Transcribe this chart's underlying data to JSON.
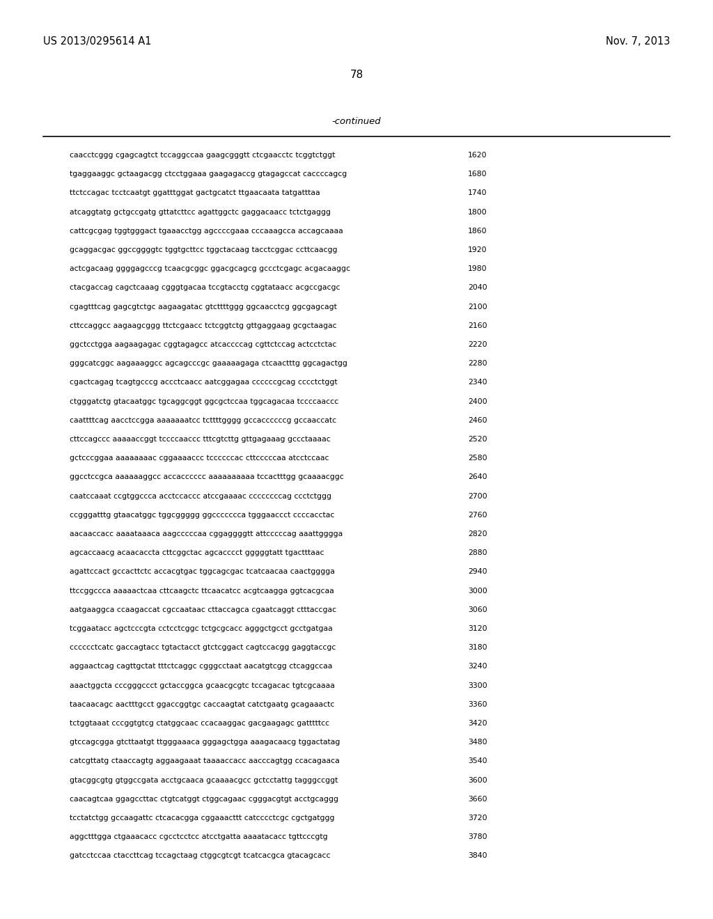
{
  "header_left": "US 2013/0295614 A1",
  "header_right": "Nov. 7, 2013",
  "page_number": "78",
  "continued_label": "-continued",
  "background_color": "#ffffff",
  "text_color": "#000000",
  "font_size_header": 10.5,
  "font_size_page": 11,
  "font_size_continued": 9.5,
  "font_size_sequence": 7.8,
  "sequence_lines": [
    [
      "caacctcggg cgagcagtct tccaggccaa gaagcgggtt ctcgaacctc tcggtctggt",
      "1620"
    ],
    [
      "tgaggaaggc gctaagacgg ctcctggaaa gaagagaccg gtagagccat caccccagcg",
      "1680"
    ],
    [
      "ttctccagac tcctcaatgt ggatttggat gactgcatct ttgaacaata tatgatttaa",
      "1740"
    ],
    [
      "atcaggtatg gctgccgatg gttatcttcc agattggctc gaggacaacc tctctgaggg",
      "1800"
    ],
    [
      "cattcgcgag tggtgggact tgaaacctgg agccccgaaa cccaaagcca accagcaaaa",
      "1860"
    ],
    [
      "gcaggacgac ggccggggtc tggtgcttcc tggctacaag tacctcggac ccttcaacgg",
      "1920"
    ],
    [
      "actcgacaag ggggagcccg tcaacgcggc ggacgcagcg gccctcgagc acgacaaggc",
      "1980"
    ],
    [
      "ctacgaccag cagctcaaag cgggtgacaa tccgtacctg cggtataacc acgccgacgc",
      "2040"
    ],
    [
      "cgagtttcag gagcgtctgc aagaagatac gtcttttggg ggcaacctcg ggcgagcagt",
      "2100"
    ],
    [
      "cttccaggcc aagaagcggg ttctcgaacc tctcggtctg gttgaggaag gcgctaagac",
      "2160"
    ],
    [
      "ggctcctgga aagaagagac cggtagagcc atcaccccag cgttctccag actcctctac",
      "2220"
    ],
    [
      "gggcatcggc aagaaaggcc agcagcccgc gaaaaagaga ctcaactttg ggcagactgg",
      "2280"
    ],
    [
      "cgactcagag tcagtgcccg accctcaacc aatcggagaa ccccccgcag cccctctggt",
      "2340"
    ],
    [
      "ctgggatctg gtacaatggc tgcaggcggt ggcgctccaa tggcagacaa tccccaaccc",
      "2400"
    ],
    [
      "caattttcag aacctccgga aaaaaaatcc tcttttgggg gccaccccccg gccaaccatc",
      "2460"
    ],
    [
      "cttccagccc aaaaaccggt tccccaaccc tttcgtcttg gttgagaaag gccctaaaac",
      "2520"
    ],
    [
      "gctcccggaa aaaaaaaac cggaaaaccc tccccccac cttcccccaa atcctccaac",
      "2580"
    ],
    [
      "ggcctccgca aaaaaaggcc accacccccc aaaaaaaaaa tccactttgg gcaaaacggc",
      "2640"
    ],
    [
      "caatccaaat ccgtggccca acctccaccc atccgaaaac ccccccccag ccctctggg",
      "2700"
    ],
    [
      "ccgggatttg gtaacatggc tggcggggg ggccccccca tgggaaccct ccccacctac",
      "2760"
    ],
    [
      "aacaaccacc aaaataaaca aagcccccaa cggaggggtt attcccccag aaattgggga",
      "2820"
    ],
    [
      "agcaccaacg acaacaccta cttcggctac agcacccct gggggtatt tgactttaac",
      "2880"
    ],
    [
      "agattccact gccacttctc accacgtgac tggcagcgac tcatcaacaa caactgggga",
      "2940"
    ],
    [
      "ttccggccca aaaaactcaa cttcaagctc ttcaacatcc acgtcaagga ggtcacgcaa",
      "3000"
    ],
    [
      "aatgaaggca ccaagaccat cgccaataac cttaccagca cgaatcaggt ctttaccgac",
      "3060"
    ],
    [
      "tcggaatacc agctcccgta cctcctcggc tctgcgcacc agggctgcct gcctgatgaa",
      "3120"
    ],
    [
      "cccccctcatc gaccagtacc tgtactacct gtctcggact cagtccacgg gaggtaccgc",
      "3180"
    ],
    [
      "aggaactcag cagttgctat tttctcaggc cgggcctaat aacatgtcgg ctcaggccaa",
      "3240"
    ],
    [
      "aaactggcta cccgggccct gctaccggca gcaacgcgtc tccagacac tgtcgcaaaa",
      "3300"
    ],
    [
      "taacaacagc aactttgcct ggaccggtgc caccaagtat catctgaatg gcagaaactc",
      "3360"
    ],
    [
      "tctggtaaat cccggtgtcg ctatggcaac ccacaaggac gacgaagagc gatttttcc",
      "3420"
    ],
    [
      "gtccagcgga gtcttaatgt ttgggaaaca gggagctgga aaagacaacg tggactatag",
      "3480"
    ],
    [
      "catcgttatg ctaaccagtg aggaagaaat taaaaccacc aacccagtgg ccacagaaca",
      "3540"
    ],
    [
      "gtacggcgtg gtggccgata acctgcaaca gcaaaacgcc gctcctattg tagggccggt",
      "3600"
    ],
    [
      "caacagtcaa ggagccttac ctgtcatggt ctggcagaac cgggacgtgt acctgcaggg",
      "3660"
    ],
    [
      "tcctatctgg gccaagattc ctcacacgga cggaaacttt catcccctcgc cgctgatggg",
      "3720"
    ],
    [
      "aggctttgga ctgaaacacc cgcctcctcc atcctgatta aaaatacacc tgttcccgtg",
      "3780"
    ],
    [
      "gatcctccaa ctaccttcag tccagctaag ctggcgtcgt tcatcacgca gtacagcacc",
      "3840"
    ]
  ]
}
